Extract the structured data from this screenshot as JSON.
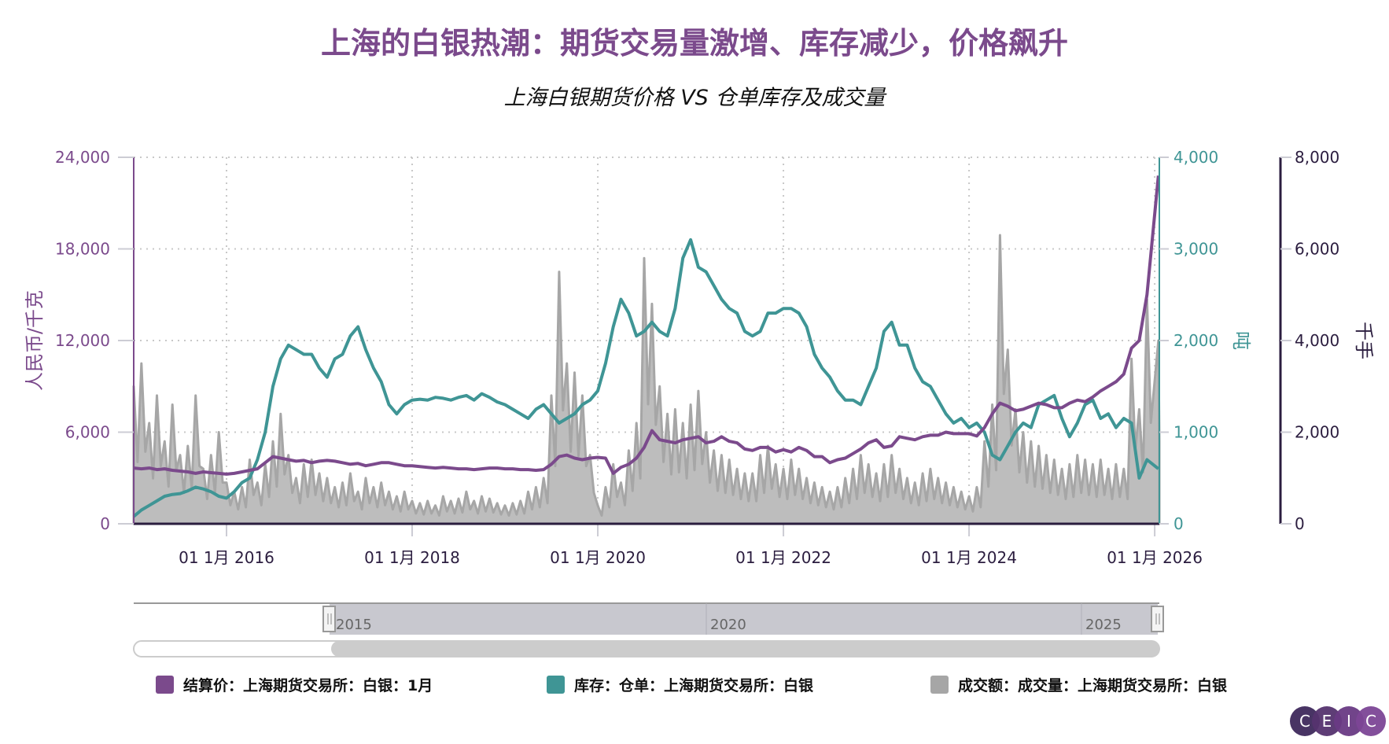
{
  "title": "上海的白银热潮：期货交易量激增、库存减少，价格飙升",
  "subtitle": "上海白银期货价格 VS 仓单库存及成交量",
  "colors": {
    "price": "#7b4a8c",
    "inventory": "#3f9595",
    "volume_fill": "#bdbdbd",
    "volume_line": "#a6a6a6",
    "axis_dark": "#2b1d3f"
  },
  "chart_data": {
    "type": "line",
    "x_start": "2015-01",
    "x_frequency": "monthly",
    "x_range": [
      "2015-01",
      "2026-01"
    ],
    "x_tick_labels": [
      "01 1月 2016",
      "01 1月 2018",
      "01 1月 2020",
      "01 1月 2022",
      "01 1月 2024",
      "01 1月 2026"
    ],
    "grid": true,
    "legend_position": "bottom",
    "axes": {
      "left": {
        "label": "人民币/千克",
        "ylim": [
          0,
          24000
        ],
        "ticks": [
          "0",
          "6,000",
          "12,000",
          "18,000",
          "24,000"
        ]
      },
      "right1": {
        "label": "吨",
        "ylim": [
          0,
          4000
        ],
        "ticks": [
          "0",
          "1,000",
          "2,000",
          "3,000",
          "4,000"
        ]
      },
      "right2": {
        "label": "千手",
        "ylim": [
          0,
          8000
        ],
        "ticks": [
          "0",
          "2,000",
          "4,000",
          "6,000",
          "8,000"
        ]
      }
    },
    "series": [
      {
        "name": "结算价：上海期货交易所：白银：1月",
        "axis": "left",
        "kind": "line",
        "color": "#7b4a8c",
        "values": [
          3650,
          3600,
          3650,
          3550,
          3600,
          3500,
          3450,
          3400,
          3300,
          3400,
          3350,
          3300,
          3250,
          3300,
          3400,
          3500,
          3600,
          4000,
          4400,
          4300,
          4200,
          4100,
          4150,
          4000,
          4100,
          4150,
          4100,
          4000,
          3900,
          3950,
          3800,
          3900,
          4000,
          4000,
          3900,
          3800,
          3800,
          3750,
          3700,
          3650,
          3700,
          3650,
          3600,
          3600,
          3550,
          3600,
          3650,
          3650,
          3600,
          3600,
          3550,
          3550,
          3500,
          3550,
          3900,
          4400,
          4500,
          4300,
          4200,
          4300,
          4350,
          4300,
          3300,
          3700,
          3900,
          4300,
          5000,
          6100,
          5500,
          5400,
          5300,
          5500,
          5600,
          5700,
          5300,
          5400,
          5700,
          5400,
          5300,
          4900,
          4800,
          5000,
          5000,
          4700,
          4850,
          4700,
          5000,
          4800,
          4400,
          4400,
          4000,
          4200,
          4300,
          4600,
          4900,
          5300,
          5500,
          5000,
          5100,
          5700,
          5600,
          5500,
          5700,
          5800,
          5800,
          6000,
          5900,
          5900,
          5900,
          5750,
          6300,
          7200,
          7900,
          7700,
          7400,
          7500,
          7700,
          7900,
          7800,
          7600,
          7600,
          7900,
          8100,
          8000,
          8300,
          8700,
          9000,
          9300,
          9800,
          11500,
          12000,
          15000,
          22800
        ]
      },
      {
        "name": "库存：仓单：上海期货交易所：白银",
        "axis": "right1",
        "kind": "line",
        "color": "#3f9595",
        "values": [
          80,
          150,
          200,
          250,
          300,
          320,
          330,
          360,
          400,
          380,
          350,
          300,
          280,
          350,
          450,
          500,
          700,
          1000,
          1500,
          1800,
          1950,
          1900,
          1850,
          1850,
          1700,
          1600,
          1800,
          1850,
          2050,
          2150,
          1900,
          1700,
          1550,
          1300,
          1200,
          1300,
          1350,
          1360,
          1350,
          1380,
          1370,
          1350,
          1380,
          1400,
          1350,
          1420,
          1380,
          1330,
          1300,
          1250,
          1200,
          1150,
          1250,
          1300,
          1200,
          1100,
          1150,
          1200,
          1300,
          1350,
          1450,
          1750,
          2150,
          2450,
          2300,
          2050,
          2100,
          2200,
          2100,
          2050,
          2350,
          2900,
          3100,
          2800,
          2750,
          2600,
          2450,
          2350,
          2300,
          2100,
          2050,
          2100,
          2300,
          2300,
          2350,
          2350,
          2300,
          2150,
          1850,
          1700,
          1600,
          1450,
          1350,
          1350,
          1300,
          1500,
          1700,
          2100,
          2200,
          1950,
          1950,
          1700,
          1550,
          1500,
          1350,
          1200,
          1100,
          1150,
          1050,
          1100,
          1000,
          750,
          700,
          850,
          1000,
          1100,
          1050,
          1300,
          1350,
          1400,
          1150,
          950,
          1100,
          1300,
          1350,
          1150,
          1200,
          1050,
          1150,
          1100,
          500,
          700,
          600
        ]
      },
      {
        "name": "成交额：成交量：上海期货交易所：白银",
        "axis": "right2",
        "kind": "area",
        "color": "#a6a6a6",
        "values": [
          3000,
          3500,
          2200,
          2800,
          1800,
          2600,
          1500,
          1700,
          2800,
          1200,
          1500,
          2000,
          900,
          700,
          800,
          1400,
          900,
          1300,
          1800,
          2400,
          1500,
          1000,
          1300,
          1400,
          1100,
          1000,
          800,
          900,
          1100,
          700,
          1000,
          800,
          900,
          700,
          600,
          700,
          500,
          450,
          500,
          400,
          600,
          500,
          550,
          700,
          500,
          600,
          550,
          450,
          400,
          450,
          500,
          700,
          800,
          1000,
          2800,
          5500,
          3500,
          3300,
          2800,
          1500,
          400,
          800,
          1300,
          900,
          1600,
          2200,
          5800,
          4800,
          3000,
          2400,
          2500,
          2200,
          2600,
          2900,
          2000,
          1600,
          1500,
          1400,
          1200,
          1100,
          1100,
          1500,
          1700,
          1300,
          1200,
          1400,
          1200,
          1000,
          900,
          800,
          700,
          800,
          1000,
          1200,
          1500,
          1300,
          1100,
          1300,
          1500,
          1200,
          1000,
          900,
          1100,
          1200,
          1000,
          900,
          800,
          700,
          600,
          800,
          1800,
          2600,
          6300,
          3800,
          2500,
          2000,
          1800,
          1700,
          1500,
          1400,
          1200,
          1300,
          1500,
          1400,
          1300,
          1400,
          1200,
          1300,
          1200,
          3600,
          2500,
          4900,
          4000
        ]
      }
    ]
  },
  "navigator": {
    "labels": [
      "2015",
      "2020",
      "2025"
    ]
  },
  "legend": [
    {
      "label": "结算价：上海期货交易所：白银：1月",
      "color": "#7b4a8c"
    },
    {
      "label": "库存：仓单：上海期货交易所：白银",
      "color": "#3f9595"
    },
    {
      "label": "成交额：成交量：上海期货交易所：白银",
      "color": "#a6a6a6"
    }
  ],
  "logo": {
    "letters": [
      "C",
      "E",
      "I",
      "C"
    ]
  }
}
